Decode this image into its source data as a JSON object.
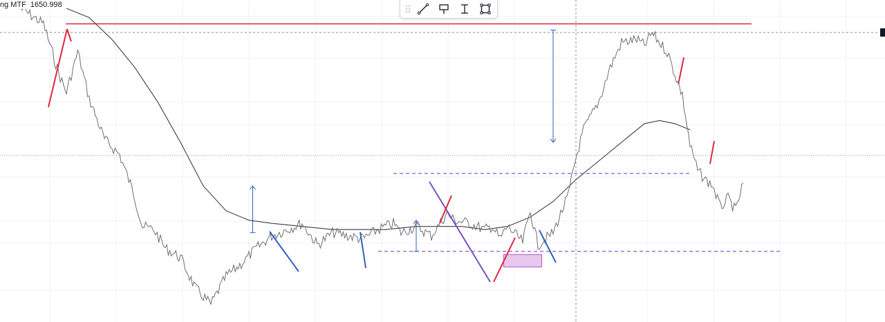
{
  "legend": {
    "title_fragment": "ng MTF",
    "value": "1650.998"
  },
  "toolbar": {
    "items": [
      {
        "name": "grip-icon"
      },
      {
        "name": "trend-line-icon"
      },
      {
        "name": "price-label-icon"
      },
      {
        "name": "price-range-icon"
      },
      {
        "name": "rectangle-icon"
      }
    ]
  },
  "colors": {
    "price": "#6b6e75",
    "ma": "#3d3d3d",
    "red": "#e0263a",
    "blue": "#2f5fbf",
    "purple": "#7a4fc4",
    "dashed_purple": "#8a5bd0",
    "zone_fill": "#e7c8ef",
    "zone_stroke": "#b257c9",
    "grid": "#eef0f3",
    "crosshair": "#8a8e96"
  },
  "chart_data": {
    "type": "line",
    "title": "",
    "grid": true,
    "x_range": [
      0,
      100
    ],
    "ylim": [
      0,
      100
    ],
    "series": [
      {
        "kind": "price",
        "points": [
          [
            0,
            100
          ],
          [
            3,
            95
          ],
          [
            5,
            79
          ],
          [
            6,
            73
          ],
          [
            7.5,
            86
          ],
          [
            9,
            71
          ],
          [
            11,
            58
          ],
          [
            13,
            53
          ],
          [
            14.8,
            41
          ],
          [
            16,
            30
          ],
          [
            17.5,
            29
          ],
          [
            19,
            23
          ],
          [
            21,
            20
          ],
          [
            23,
            10
          ],
          [
            25,
            5
          ],
          [
            27,
            14
          ],
          [
            29,
            18
          ],
          [
            31,
            23
          ],
          [
            33,
            27
          ],
          [
            35,
            29
          ],
          [
            37,
            31
          ],
          [
            39,
            24
          ],
          [
            41,
            28
          ],
          [
            43,
            27
          ],
          [
            45,
            26
          ],
          [
            47,
            29
          ],
          [
            49,
            31
          ],
          [
            50,
            28
          ],
          [
            52,
            30
          ],
          [
            54,
            27
          ],
          [
            56,
            34
          ],
          [
            57,
            32
          ],
          [
            59,
            31
          ],
          [
            61,
            29
          ],
          [
            62,
            30
          ],
          [
            63,
            26
          ],
          [
            64,
            30
          ],
          [
            66,
            25
          ],
          [
            67,
            35
          ],
          [
            68,
            24
          ],
          [
            69,
            26
          ],
          [
            70,
            28
          ],
          [
            72,
            40
          ],
          [
            73,
            52
          ],
          [
            74,
            61
          ],
          [
            76,
            70
          ],
          [
            77.5,
            81
          ],
          [
            79,
            89
          ],
          [
            81,
            90
          ],
          [
            82,
            88
          ],
          [
            83,
            92
          ],
          [
            85,
            86
          ],
          [
            86,
            79
          ],
          [
            87,
            72
          ],
          [
            88,
            56
          ],
          [
            89,
            48
          ],
          [
            90,
            45
          ],
          [
            91,
            43
          ],
          [
            92,
            36
          ],
          [
            93,
            39
          ],
          [
            94,
            35
          ],
          [
            95,
            44
          ]
        ]
      },
      {
        "kind": "moving-average",
        "points": [
          [
            6,
            100
          ],
          [
            9,
            97
          ],
          [
            12,
            90
          ],
          [
            15,
            81
          ],
          [
            18,
            70
          ],
          [
            21,
            57
          ],
          [
            24,
            43
          ],
          [
            27,
            35
          ],
          [
            30,
            32
          ],
          [
            33,
            31
          ],
          [
            37,
            30
          ],
          [
            41,
            29
          ],
          [
            45,
            29
          ],
          [
            48,
            29
          ],
          [
            52,
            30
          ],
          [
            55,
            30
          ],
          [
            58,
            30
          ],
          [
            61,
            29
          ],
          [
            64,
            30
          ],
          [
            67,
            33
          ],
          [
            70,
            38
          ],
          [
            73,
            45
          ],
          [
            76,
            51
          ],
          [
            78,
            55
          ],
          [
            80,
            59
          ],
          [
            82,
            63
          ],
          [
            84,
            64
          ],
          [
            86,
            63
          ],
          [
            88,
            61
          ]
        ]
      }
    ],
    "annotations": [
      {
        "type": "horizontal-line",
        "color": "red",
        "y": 95
      },
      {
        "type": "horizontal-dashed-line",
        "color": "purple",
        "y": 47,
        "x_start": 49,
        "x_end": 88
      },
      {
        "type": "horizontal-dashed-line",
        "color": "purple",
        "y": 22,
        "x_start": 47,
        "x_end": 100
      },
      {
        "type": "zone",
        "color": "pink",
        "x_start": 63.5,
        "x_end": 68.5,
        "y_low": 17,
        "y_high": 21
      },
      {
        "type": "vertical-arrow",
        "direction": "up",
        "x": 30.5,
        "from": 28,
        "to": 43
      },
      {
        "type": "vertical-arrow",
        "direction": "up",
        "x": 52,
        "from": 22,
        "to": 32
      },
      {
        "type": "vertical-arrow",
        "direction": "down",
        "x": 70,
        "from": 93,
        "to": 57
      }
    ]
  }
}
